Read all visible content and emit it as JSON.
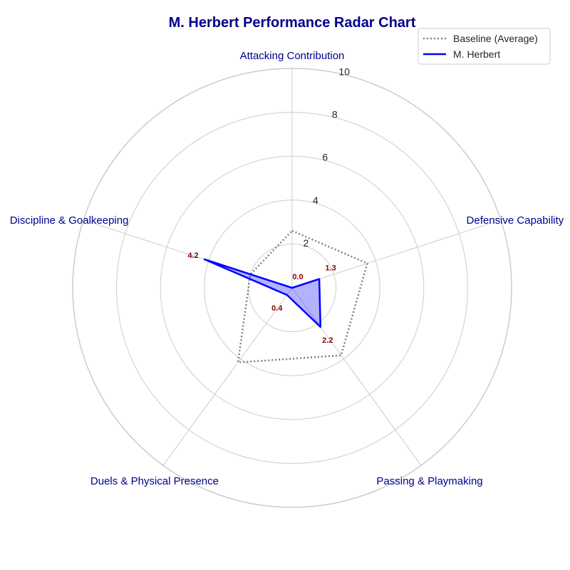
{
  "chart_data": {
    "type": "radar",
    "title": "M. Herbert Performance Radar Chart",
    "axes": [
      "Attacking Contribution",
      "Defensive Capability",
      "Passing & Playmaking",
      "Duels & Physical Presence",
      "Discipline & Goalkeeping"
    ],
    "rmax": 10,
    "r_ticks": [
      2,
      4,
      6,
      8,
      10
    ],
    "grid": true,
    "legend_position": "top-right",
    "series": [
      {
        "name": "Baseline (Average)",
        "values": [
          2.6,
          3.6,
          3.8,
          4.2,
          2.0
        ],
        "style": "dotted",
        "color": "#808080"
      },
      {
        "name": "M. Herbert",
        "values": [
          0.0,
          1.3,
          2.2,
          0.4,
          4.2
        ],
        "style": "solid",
        "color": "#0000ff",
        "fill": "#0000ff"
      }
    ],
    "data_labels": [
      "0.0",
      "1.3",
      "2.2",
      "0.4",
      "4.2"
    ]
  }
}
